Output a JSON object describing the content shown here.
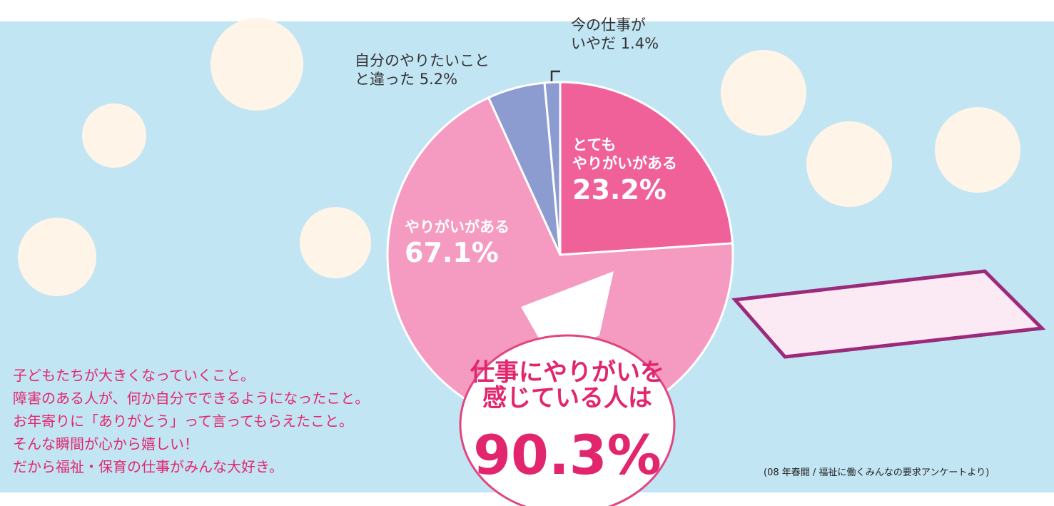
{
  "chart_data": {
    "type": "pie",
    "series": [
      {
        "name": "仕事のやりがい",
        "categories": [
          "とても\nやりがいがある",
          "やりがいがある",
          "自分のやりたいこと\nと違った",
          "今の仕事が\nいやだ"
        ],
        "values": [
          23.2,
          67.1,
          5.2,
          1.4
        ],
        "value_labels": [
          "23.2%",
          "67.1%",
          "5.2%",
          "1.4%"
        ],
        "colors": [
          "#f0619a",
          "#f59ac0",
          "#8c9bd0",
          "#8c9bd0"
        ]
      }
    ],
    "highlight_text": "仕事にやりがいを\n感じている人は",
    "highlight_label": "90.3%",
    "note": "子どもたちが大きくなっていくこと。\n障害のある人が、何か自分でできるようになったこと。\nお年寄りに「ありがとう」って言ってもらえたこと。\nそんな瞬間が心から嬉しい！\nだから福祉・保育の仕事がみんな大好き。",
    "source": "(08 年春闘 / 福祉に働くみんなの要求アンケートより)"
  }
}
